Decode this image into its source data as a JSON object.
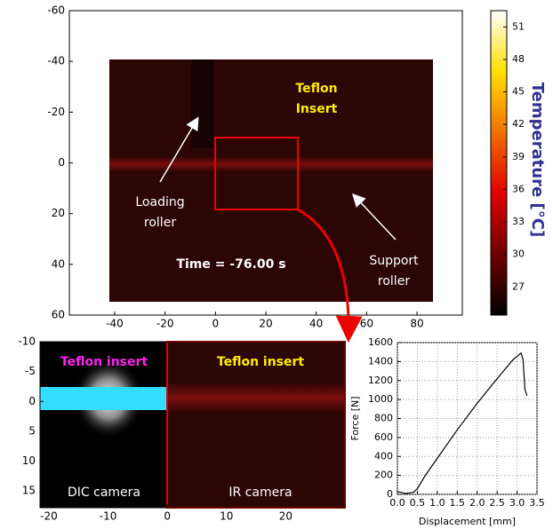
{
  "chart_data": [
    {
      "type": "image",
      "xlim": [
        -58,
        98
      ],
      "ylim": [
        -60,
        60
      ],
      "y_inverted": true,
      "xticks": [
        -40,
        -20,
        0,
        20,
        40,
        60,
        80
      ],
      "yticks": [
        -60,
        -40,
        -20,
        0,
        20,
        40,
        60
      ],
      "colorbar": {
        "lim": [
          24.4,
          52.5
        ],
        "ticks": [
          27,
          30,
          33,
          36,
          39,
          42,
          45,
          48,
          51
        ],
        "label": "Temperature [°C]"
      },
      "annotations": [
        {
          "lines": [
            "Teflon",
            "Insert"
          ],
          "color": "#ffee00"
        },
        {
          "lines": [
            "Loading",
            "roller"
          ],
          "color": "#ffffff"
        },
        {
          "lines": [
            "Support",
            "roller"
          ],
          "color": "#ffffff"
        },
        {
          "lines": [
            "Time = -76.00 s"
          ],
          "color": "#ffffff"
        }
      ]
    },
    {
      "type": "image",
      "xlim": [
        -21.5,
        30
      ],
      "ylim": [
        -10,
        17.8
      ],
      "y_inverted": true,
      "xticks": [
        -20,
        -10,
        0,
        10,
        20
      ],
      "yticks": [
        -10,
        -5,
        0,
        5,
        10,
        15
      ],
      "annotations": [
        {
          "lines": [
            "Teflon insert"
          ],
          "color": "#ff22ee"
        },
        {
          "lines": [
            "Teflon insert"
          ],
          "color": "#ffee00"
        },
        {
          "lines": [
            "DIC camera"
          ],
          "color": "#ffffff"
        },
        {
          "lines": [
            "IR camera"
          ],
          "color": "#ffffff"
        }
      ]
    },
    {
      "type": "line",
      "x_label": "Displacement [mm]",
      "y_label": "Force [N]",
      "x": [
        0,
        0.2,
        0.4,
        0.5,
        0.7,
        1.0,
        1.5,
        2.0,
        2.5,
        2.9,
        3.1,
        3.15,
        3.2,
        3.25
      ],
      "series": [
        {
          "color": "#000000",
          "values": [
            30,
            10,
            20,
            60,
            200,
            380,
            680,
            960,
            1220,
            1420,
            1490,
            1420,
            1100,
            1040
          ]
        }
      ],
      "xlim": [
        0,
        3.5
      ],
      "ylim": [
        0,
        1600
      ],
      "xticks": [
        {
          "value": 0,
          "label": "0.0"
        },
        0.5,
        {
          "value": 1,
          "label": "1.0"
        },
        1.5,
        {
          "value": 2,
          "label": "2.0"
        },
        2.5,
        {
          "value": 3,
          "label": "3.0"
        },
        3.5
      ],
      "yticks": [
        0,
        200,
        400,
        600,
        800,
        1000,
        1200,
        1400,
        1600
      ],
      "grid": true
    }
  ]
}
